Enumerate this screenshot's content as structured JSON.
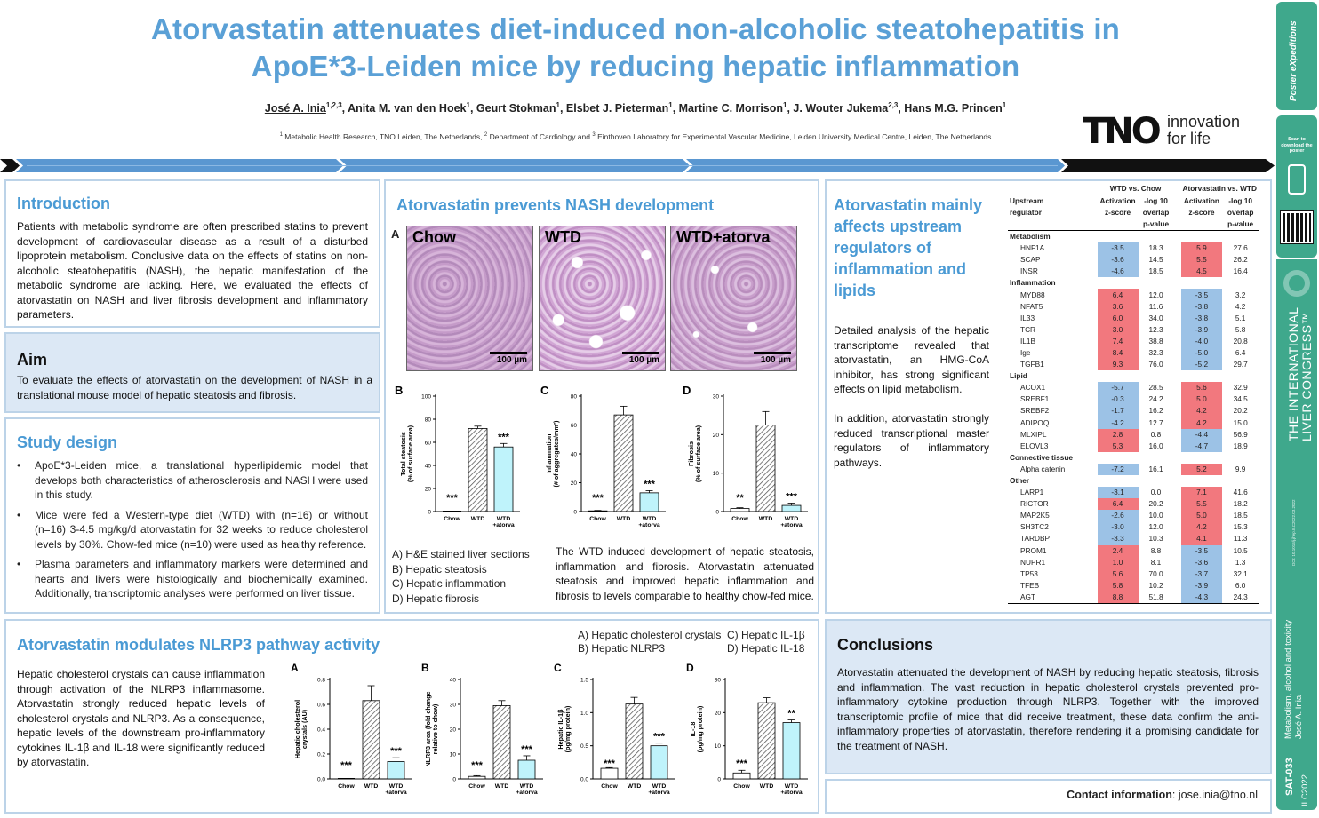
{
  "title_line1": "Atorvastatin attenuates diet-induced non-alcoholic steatohepatitis in",
  "title_line2": "ApoE*3-Leiden mice by reducing hepatic inflammation",
  "authors": [
    {
      "name": "José  A. Inia",
      "sup": "1,2,3"
    },
    {
      "name": "Anita M. van den Hoek",
      "sup": "1"
    },
    {
      "name": "Geurt Stokman",
      "sup": "1"
    },
    {
      "name": "Elsbet J. Pieterman",
      "sup": "1"
    },
    {
      "name": "Martine C. Morrison",
      "sup": "1"
    },
    {
      "name": "J. Wouter Jukema",
      "sup": "2,3"
    },
    {
      "name": "Hans M.G. Princen",
      "sup": "1"
    }
  ],
  "affiliation": {
    "s1": "1",
    "t1": " Metabolic Health Research, TNO Leiden, The Netherlands, ",
    "s2": "2",
    "t2": " Department of Cardiology and ",
    "s3": "3",
    "t3": " Einthoven Laboratory for Experimental Vascular Medicine, Leiden University Medical Centre, Leiden, The Netherlands"
  },
  "tno": {
    "logo": "TNO",
    "tag1": "innovation",
    "tag2": "for life"
  },
  "intro": {
    "heading": "Introduction",
    "text": "Patients with metabolic syndrome are often prescribed statins to prevent development of cardiovascular disease as a result of a disturbed lipoprotein metabolism. Conclusive data on the effects of statins on non-alcoholic steatohepatitis (NASH), the hepatic manifestation of the metabolic syndrome are lacking. Here, we evaluated the effects of atorvastatin on NASH and liver fibrosis development and inflammatory parameters."
  },
  "aim": {
    "heading": "Aim",
    "text": "To evaluate the effects of atorvastatin on the development of NASH in a translational mouse model of hepatic steatosis and fibrosis."
  },
  "design": {
    "heading": "Study design",
    "items": [
      "ApoE*3-Leiden mice, a translational hyperlipidemic model that develops both characteristics of atherosclerosis and NASH were used in this study.",
      "Mice were fed a Western-type diet (WTD) with (n=16) or without (n=16) 3-4.5 mg/kg/d atorvastatin for 32 weeks to reduce cholesterol levels by 30%. Chow-fed mice (n=10) were used as healthy reference.",
      "Plasma parameters and inflammatory markers were determined and hearts and livers were histologically and biochemically examined. Additionally, transcriptomic analyses were performed on liver tissue."
    ]
  },
  "nash": {
    "heading": "Atorvastatin prevents NASH development",
    "panel_a": "A",
    "images": [
      "Chow",
      "WTD",
      "WTD+atorva"
    ],
    "scale": "100 µm",
    "legend": [
      "A) H&E stained liver sections",
      "B) Hepatic steatosis",
      "C) Hepatic inflammation",
      "D) Hepatic fibrosis"
    ],
    "text": "The WTD induced development of hepatic steatosis, inflammation and fibrosis. Atorvastatin attenuated steatosis and improved hepatic inflammation and fibrosis to levels comparable to healthy chow-fed mice."
  },
  "upstream": {
    "heading": "Atorvastatin mainly affects upstream regulators of inflammation and lipids",
    "p1": "Detailed analysis of the hepatic transcriptome revealed that atorvastatin, an HMG-CoA inhibitor, has strong significant effects on lipid metabolism.",
    "p2": "In addition, atorvastatin strongly reduced transcriptional master regulators of inflammatory pathways."
  },
  "reg_table": {
    "h_wtd": "WTD vs. Chow",
    "h_ator": "Atorvastatin vs. WTD",
    "h_up1": "Upstream",
    "h_up2": "regulator",
    "h_act1": "Activation",
    "h_act2": "z-score",
    "h_p1": "-log 10",
    "h_p2": "overlap",
    "h_p3": "p-value",
    "sections": [
      {
        "name": "Metabolism",
        "rows": [
          [
            "HNF1A",
            "-3.5",
            "18.3",
            "5.9",
            "27.6"
          ],
          [
            "SCAP",
            "-3.6",
            "14.5",
            "5.5",
            "26.2"
          ],
          [
            "INSR",
            "-4.6",
            "18.5",
            "4.5",
            "16.4"
          ]
        ]
      },
      {
        "name": "Inflammation",
        "rows": [
          [
            "MYD88",
            "6.4",
            "12.0",
            "-3.5",
            "3.2"
          ],
          [
            "NFAT5",
            "3.6",
            "11.6",
            "-3.8",
            "4.2"
          ],
          [
            "IL33",
            "6.0",
            "34.0",
            "-3.8",
            "5.1"
          ],
          [
            "TCR",
            "3.0",
            "12.3",
            "-3.9",
            "5.8"
          ],
          [
            "IL1B",
            "7.4",
            "38.8",
            "-4.0",
            "20.8"
          ],
          [
            "Ige",
            "8.4",
            "32.3",
            "-5.0",
            "6.4"
          ],
          [
            "TGFB1",
            "9.3",
            "76.0",
            "-5.2",
            "29.7"
          ]
        ]
      },
      {
        "name": "Lipid",
        "rows": [
          [
            "ACOX1",
            "-5.7",
            "28.5",
            "5.6",
            "32.9"
          ],
          [
            "SREBF1",
            "-0.3",
            "24.2",
            "5.0",
            "34.5"
          ],
          [
            "SREBF2",
            "-1.7",
            "16.2",
            "4.2",
            "20.2"
          ],
          [
            "ADIPOQ",
            "-4.2",
            "12.7",
            "4.2",
            "15.0"
          ],
          [
            "MLXIPL",
            "2.8",
            "0.8",
            "-4.4",
            "56.9"
          ],
          [
            "ELOVL3",
            "5.3",
            "16.0",
            "-4.7",
            "18.9"
          ]
        ]
      },
      {
        "name": "Connective tissue",
        "rows": [
          [
            "Alpha catenin",
            "-7.2",
            "16.1",
            "5.2",
            "9.9"
          ]
        ]
      },
      {
        "name": "Other",
        "rows": [
          [
            "LARP1",
            "-3.1",
            "0.0",
            "7.1",
            "41.6"
          ],
          [
            "RICTOR",
            "6.4",
            "20.2",
            "5.5",
            "18.2"
          ],
          [
            "MAP2K5",
            "-2.6",
            "10.0",
            "5.0",
            "18.5"
          ],
          [
            "SH3TC2",
            "-3.0",
            "12.0",
            "4.2",
            "15.3"
          ],
          [
            "TARDBP",
            "-3.3",
            "10.3",
            "4.1",
            "11.3"
          ],
          [
            "PROM1",
            "2.4",
            "8.8",
            "-3.5",
            "10.5"
          ],
          [
            "NUPR1",
            "1.0",
            "8.1",
            "-3.6",
            "1.3"
          ],
          [
            "TP53",
            "5.6",
            "70.0",
            "-3.7",
            "32.1"
          ],
          [
            "TFEB",
            "5.8",
            "10.2",
            "-3.9",
            "6.0"
          ],
          [
            "AGT",
            "8.8",
            "51.8",
            "-4.3",
            "24.3"
          ]
        ]
      }
    ]
  },
  "nlrp3": {
    "heading": "Atorvastatin modulates NLRP3 pathway activity",
    "text": "Hepatic cholesterol crystals can cause inflammation through activation of the NLRP3 inflammasome. Atorvastatin strongly reduced hepatic levels of cholesterol crystals and NLRP3. As a consequence, hepatic levels of the downstream pro-inflammatory cytokines IL-1β and IL-18 were significantly reduced by atorvastatin.",
    "legend": [
      "A) Hepatic cholesterol crystals",
      "B) Hepatic NLRP3",
      "C) Hepatic IL-1β",
      "D) Hepatic IL-18"
    ]
  },
  "conclusions": {
    "heading": "Conclusions",
    "text": "Atorvastatin attenuated the development of NASH by reducing hepatic steatosis, fibrosis and inflammation. The vast reduction in hepatic cholesterol crystals prevented pro-inflammatory cytokine production through NLRP3. Together with the improved transcriptomic profile of mice that did receive treatment, these data confirm the anti-inflammatory properties of atorvastatin, therefore rendering it a promising candidate for the treatment of NASH."
  },
  "contact": {
    "label": "Contact information",
    "value": ": jose.inia@tno.nl"
  },
  "sidebar": {
    "scan": "Scan to download the poster",
    "congress1": "THE INTERNATIONAL",
    "congress2": "LIVER CONGRESS™",
    "small": "DOI: 10.1016/j.jhep.ILC2022.03.2022",
    "topic": "Metabolism, alcohol and toxicity",
    "author": "José A. Inia",
    "code": "SAT-033",
    "event": "ILC2022",
    "logo": "Poster eXpeditions"
  },
  "colors": {
    "title": "#5aa0d6",
    "heading": "#4a9ad4",
    "panel_border": "#bcd3e8",
    "panel_blue": "#dce8f5",
    "activation_pos": "#f2787e",
    "activation_neg": "#9cc2e6",
    "sidebar": "#3fa88c",
    "bar_wtd_hatch": "#555555",
    "bar_atorva": "#bff3fb"
  },
  "chart_data": [
    {
      "id": "B",
      "type": "bar",
      "ylabel": "Total steatosis (% of surface area)",
      "categories": [
        "Chow",
        "WTD",
        "WTD\n+atorva"
      ],
      "values": [
        0,
        72,
        56
      ],
      "err": [
        0,
        2,
        3
      ],
      "ylim": [
        0,
        100
      ],
      "yticks": [
        0,
        20,
        40,
        60,
        80,
        100
      ],
      "sig": [
        "***",
        "",
        "***"
      ]
    },
    {
      "id": "C",
      "type": "bar",
      "ylabel": "Inflammation (# of aggregates/mm²)",
      "categories": [
        "Chow",
        "WTD",
        "WTD\n+atorva"
      ],
      "values": [
        0.5,
        67,
        13
      ],
      "err": [
        0.3,
        6,
        1.5
      ],
      "ylim": [
        0,
        80
      ],
      "yticks": [
        0,
        20,
        40,
        60,
        80
      ],
      "sig": [
        "***",
        "",
        "***"
      ]
    },
    {
      "id": "D",
      "type": "bar",
      "ylabel": "Fibrosis (% of surface area)",
      "categories": [
        "Chow",
        "WTD",
        "WTD\n+atorva"
      ],
      "values": [
        0.8,
        22.5,
        1.6
      ],
      "err": [
        0.2,
        3.5,
        0.6
      ],
      "ylim": [
        0,
        30
      ],
      "yticks": [
        0,
        10,
        20,
        30
      ],
      "sig": [
        "**",
        "",
        "***"
      ]
    },
    {
      "id": "A",
      "type": "bar",
      "ylabel": "Hepatic cholesterol crystals (AU)",
      "categories": [
        "Chow",
        "WTD",
        "WTD\n+atorva"
      ],
      "values": [
        0,
        0.63,
        0.14
      ],
      "err": [
        0,
        0.12,
        0.03
      ],
      "ylim": [
        0,
        0.8
      ],
      "yticks": [
        "0.0",
        "0.2",
        "0.4",
        "0.6",
        "0.8"
      ],
      "sig": [
        "***",
        "",
        "***"
      ]
    },
    {
      "id": "B",
      "type": "bar",
      "ylabel": "NLRP3 area (fold change relative to chow)",
      "categories": [
        "Chow",
        "WTD",
        "WTD\n+atorva"
      ],
      "values": [
        1,
        29.5,
        7.5
      ],
      "err": [
        0.3,
        2,
        1.8
      ],
      "ylim": [
        0,
        40
      ],
      "yticks": [
        0,
        10,
        20,
        30,
        40
      ],
      "sig": [
        "***",
        "",
        "***"
      ]
    },
    {
      "id": "C",
      "type": "bar",
      "ylabel": "Hepatic IL-1β (pg/mg protein)",
      "categories": [
        "Chow",
        "WTD",
        "WTD\n+atorva"
      ],
      "values": [
        0.16,
        1.13,
        0.5
      ],
      "err": [
        0.01,
        0.1,
        0.04
      ],
      "ylim": [
        0,
        1.5
      ],
      "yticks": [
        "0.0",
        "0.5",
        "1.0",
        "1.5"
      ],
      "sig": [
        "***",
        "",
        "***"
      ]
    },
    {
      "id": "D",
      "type": "bar",
      "ylabel": "IL-18 (pg/mg protein)",
      "categories": [
        "Chow",
        "WTD",
        "WTD\n+atorva"
      ],
      "values": [
        1.8,
        23,
        17
      ],
      "err": [
        0.8,
        1.5,
        0.8
      ],
      "ylim": [
        0,
        30
      ],
      "yticks": [
        0,
        10,
        20,
        30
      ],
      "sig": [
        "***",
        "",
        "**"
      ]
    }
  ]
}
